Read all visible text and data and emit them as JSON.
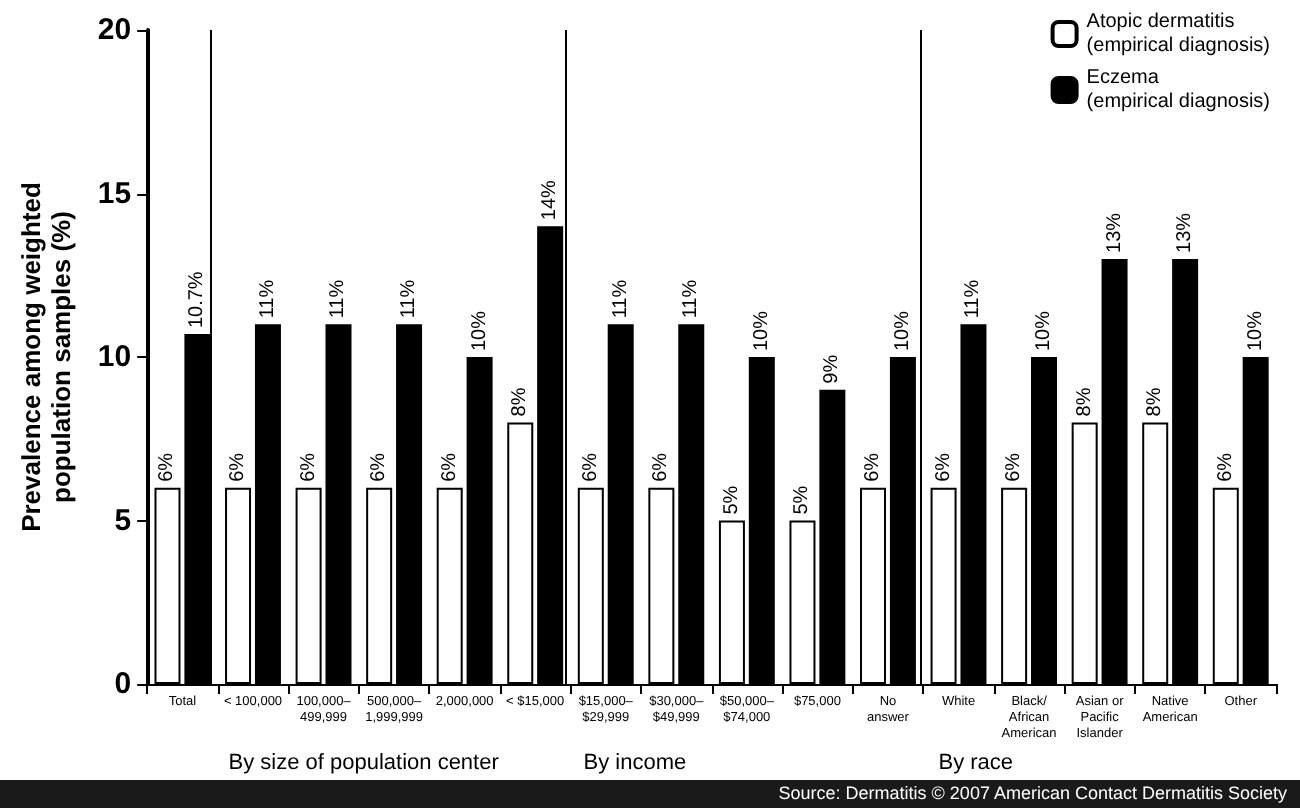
{
  "chart_data": {
    "type": "bar",
    "ylabel": "Prevalence among weighted\npopulation samples (%)",
    "categories": [
      "Total",
      "< 100,000",
      "100,000–\n499,999",
      "500,000–\n1,999,999",
      "2,000,000",
      "< $15,000",
      "$15,000–\n$29,999",
      "$30,000–\n$49,999",
      "$50,000–\n$74,000",
      "$75,000",
      "No\nanswer",
      "White",
      "Black/\nAfrican\nAmerican",
      "Asian or\nPacific\nIslander",
      "Native\nAmerican",
      "Other"
    ],
    "series": [
      {
        "name": "Atopic dermatitis\n(empirical diagnosis)",
        "color": "#ffffff",
        "values": [
          6,
          6,
          6,
          6,
          6,
          8,
          6,
          6,
          5,
          5,
          6,
          6,
          6,
          8,
          8,
          6
        ],
        "value_labels": [
          "6%",
          "6%",
          "6%",
          "6%",
          "6%",
          "8%",
          "6%",
          "6%",
          "5%",
          "5%",
          "6%",
          "6%",
          "6%",
          "8%",
          "8%",
          "6%"
        ]
      },
      {
        "name": "Eczema\n(empirical diagnosis)",
        "color": "#000000",
        "values": [
          10.7,
          11,
          11,
          11,
          10,
          14,
          11,
          11,
          10,
          9,
          10,
          11,
          10,
          13,
          13,
          10
        ],
        "value_labels": [
          "10.7%",
          "11%",
          "11%",
          "11%",
          "10%",
          "14%",
          "11%",
          "11%",
          "10%",
          "9%",
          "10%",
          "11%",
          "10%",
          "13%",
          "13%",
          "10%"
        ]
      }
    ],
    "ylim": [
      0,
      20
    ],
    "yticks": [
      0,
      5,
      10,
      15,
      20
    ],
    "grid": false,
    "legend": "top right",
    "annotations": [
      "By size of population center",
      "By income",
      "By race",
      "Source: Dermatitis © 2007 American Contact Dermatitis Society"
    ]
  }
}
